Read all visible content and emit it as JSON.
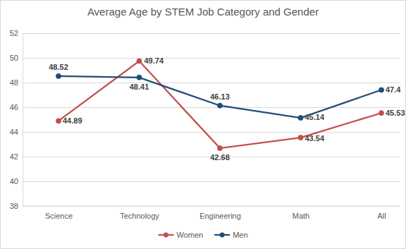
{
  "chart_data": {
    "type": "line",
    "title": "Average Age by STEM Job Category and Gender",
    "categories": [
      "Science",
      "Technology",
      "Engineering",
      "Math",
      "All"
    ],
    "series": [
      {
        "name": "Women",
        "color": "#c0504d",
        "marker": "circle",
        "values": [
          44.89,
          49.74,
          42.68,
          43.54,
          45.53
        ]
      },
      {
        "name": "Men",
        "color": "#1f4e79",
        "marker": "circle",
        "values": [
          48.52,
          48.41,
          46.13,
          45.14,
          47.4
        ]
      }
    ],
    "ylim": [
      38,
      52
    ],
    "yticks": [
      38,
      40,
      42,
      44,
      46,
      48,
      50,
      52
    ],
    "grid": true,
    "data_labels": true,
    "legend": "bottom"
  }
}
